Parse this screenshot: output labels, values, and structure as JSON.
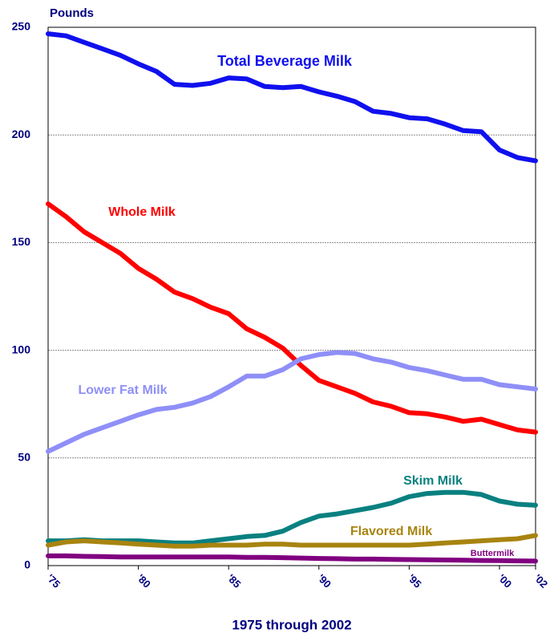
{
  "chart_data": {
    "type": "line",
    "y_axis_label": "Pounds",
    "x_axis_label": "1975 through 2002",
    "x": [
      1975,
      1976,
      1977,
      1978,
      1979,
      1980,
      1981,
      1982,
      1983,
      1984,
      1985,
      1986,
      1987,
      1988,
      1989,
      1990,
      1991,
      1992,
      1993,
      1994,
      1995,
      1996,
      1997,
      1998,
      1999,
      2000,
      2001,
      2002
    ],
    "xlim": [
      1975,
      2002
    ],
    "xticks": [
      {
        "value": 1975,
        "label": "'75"
      },
      {
        "value": 1980,
        "label": "'80"
      },
      {
        "value": 1985,
        "label": "'85"
      },
      {
        "value": 1990,
        "label": "'90"
      },
      {
        "value": 1995,
        "label": "'95"
      },
      {
        "value": 2000,
        "label": "'00"
      },
      {
        "value": 2002,
        "label": "'02"
      }
    ],
    "ylim": [
      0,
      250
    ],
    "yticks": [
      0,
      50,
      100,
      150,
      200,
      250
    ],
    "grid": true,
    "series": [
      {
        "name": "Total Beverage Milk",
        "color": "#1010ee",
        "values": [
          247,
          246,
          243,
          240,
          237,
          233,
          229.5,
          223.5,
          223,
          224,
          226.5,
          226,
          222.5,
          222,
          222.5,
          220,
          218,
          215.5,
          211,
          210,
          208,
          207.5,
          205,
          202,
          201.5,
          193,
          189.5,
          188
        ]
      },
      {
        "name": "Whole Milk",
        "color": "#ff0000",
        "values": [
          168,
          162,
          155,
          150,
          145,
          138,
          133,
          127,
          124,
          120,
          117,
          110,
          106,
          101,
          93,
          86,
          83,
          80,
          76,
          74,
          71,
          70.5,
          69,
          67,
          68,
          65.5,
          63,
          62
        ]
      },
      {
        "name": "Lower Fat Milk",
        "color": "#8f8ff8",
        "values": [
          53,
          57,
          61,
          64,
          67,
          70,
          72.5,
          73.5,
          75.5,
          78.5,
          83,
          88,
          88,
          91,
          96,
          98,
          99,
          98.5,
          96,
          94.5,
          92,
          90.5,
          88.5,
          86.5,
          86.5,
          84,
          83,
          82
        ]
      },
      {
        "name": "Skim Milk",
        "color": "#0a8080",
        "values": [
          11.5,
          11.5,
          12,
          11.5,
          11.5,
          11.5,
          11,
          10.5,
          10.5,
          11.5,
          12.5,
          13.5,
          14,
          16,
          20,
          23,
          24,
          25.5,
          27,
          29,
          32,
          33.5,
          34,
          34,
          33,
          30,
          28.5,
          28
        ]
      },
      {
        "name": "Flavored Milk",
        "color": "#a88410",
        "values": [
          9.5,
          11,
          11.5,
          11,
          10.5,
          10,
          9.5,
          9,
          9,
          9.5,
          9.5,
          9.5,
          10,
          10,
          9.5,
          9.5,
          9.5,
          9.5,
          9.5,
          9.5,
          9.5,
          10,
          10.5,
          11,
          11.5,
          12,
          12.5,
          14
        ]
      },
      {
        "name": "Buttermilk",
        "color": "#800080",
        "values": [
          4.5,
          4.5,
          4.3,
          4.2,
          4,
          4,
          4,
          4,
          4,
          4,
          4,
          3.8,
          3.8,
          3.7,
          3.5,
          3.3,
          3.2,
          3,
          3,
          2.9,
          2.8,
          2.7,
          2.6,
          2.5,
          2.4,
          2.3,
          2.2,
          2.1
        ]
      }
    ]
  }
}
